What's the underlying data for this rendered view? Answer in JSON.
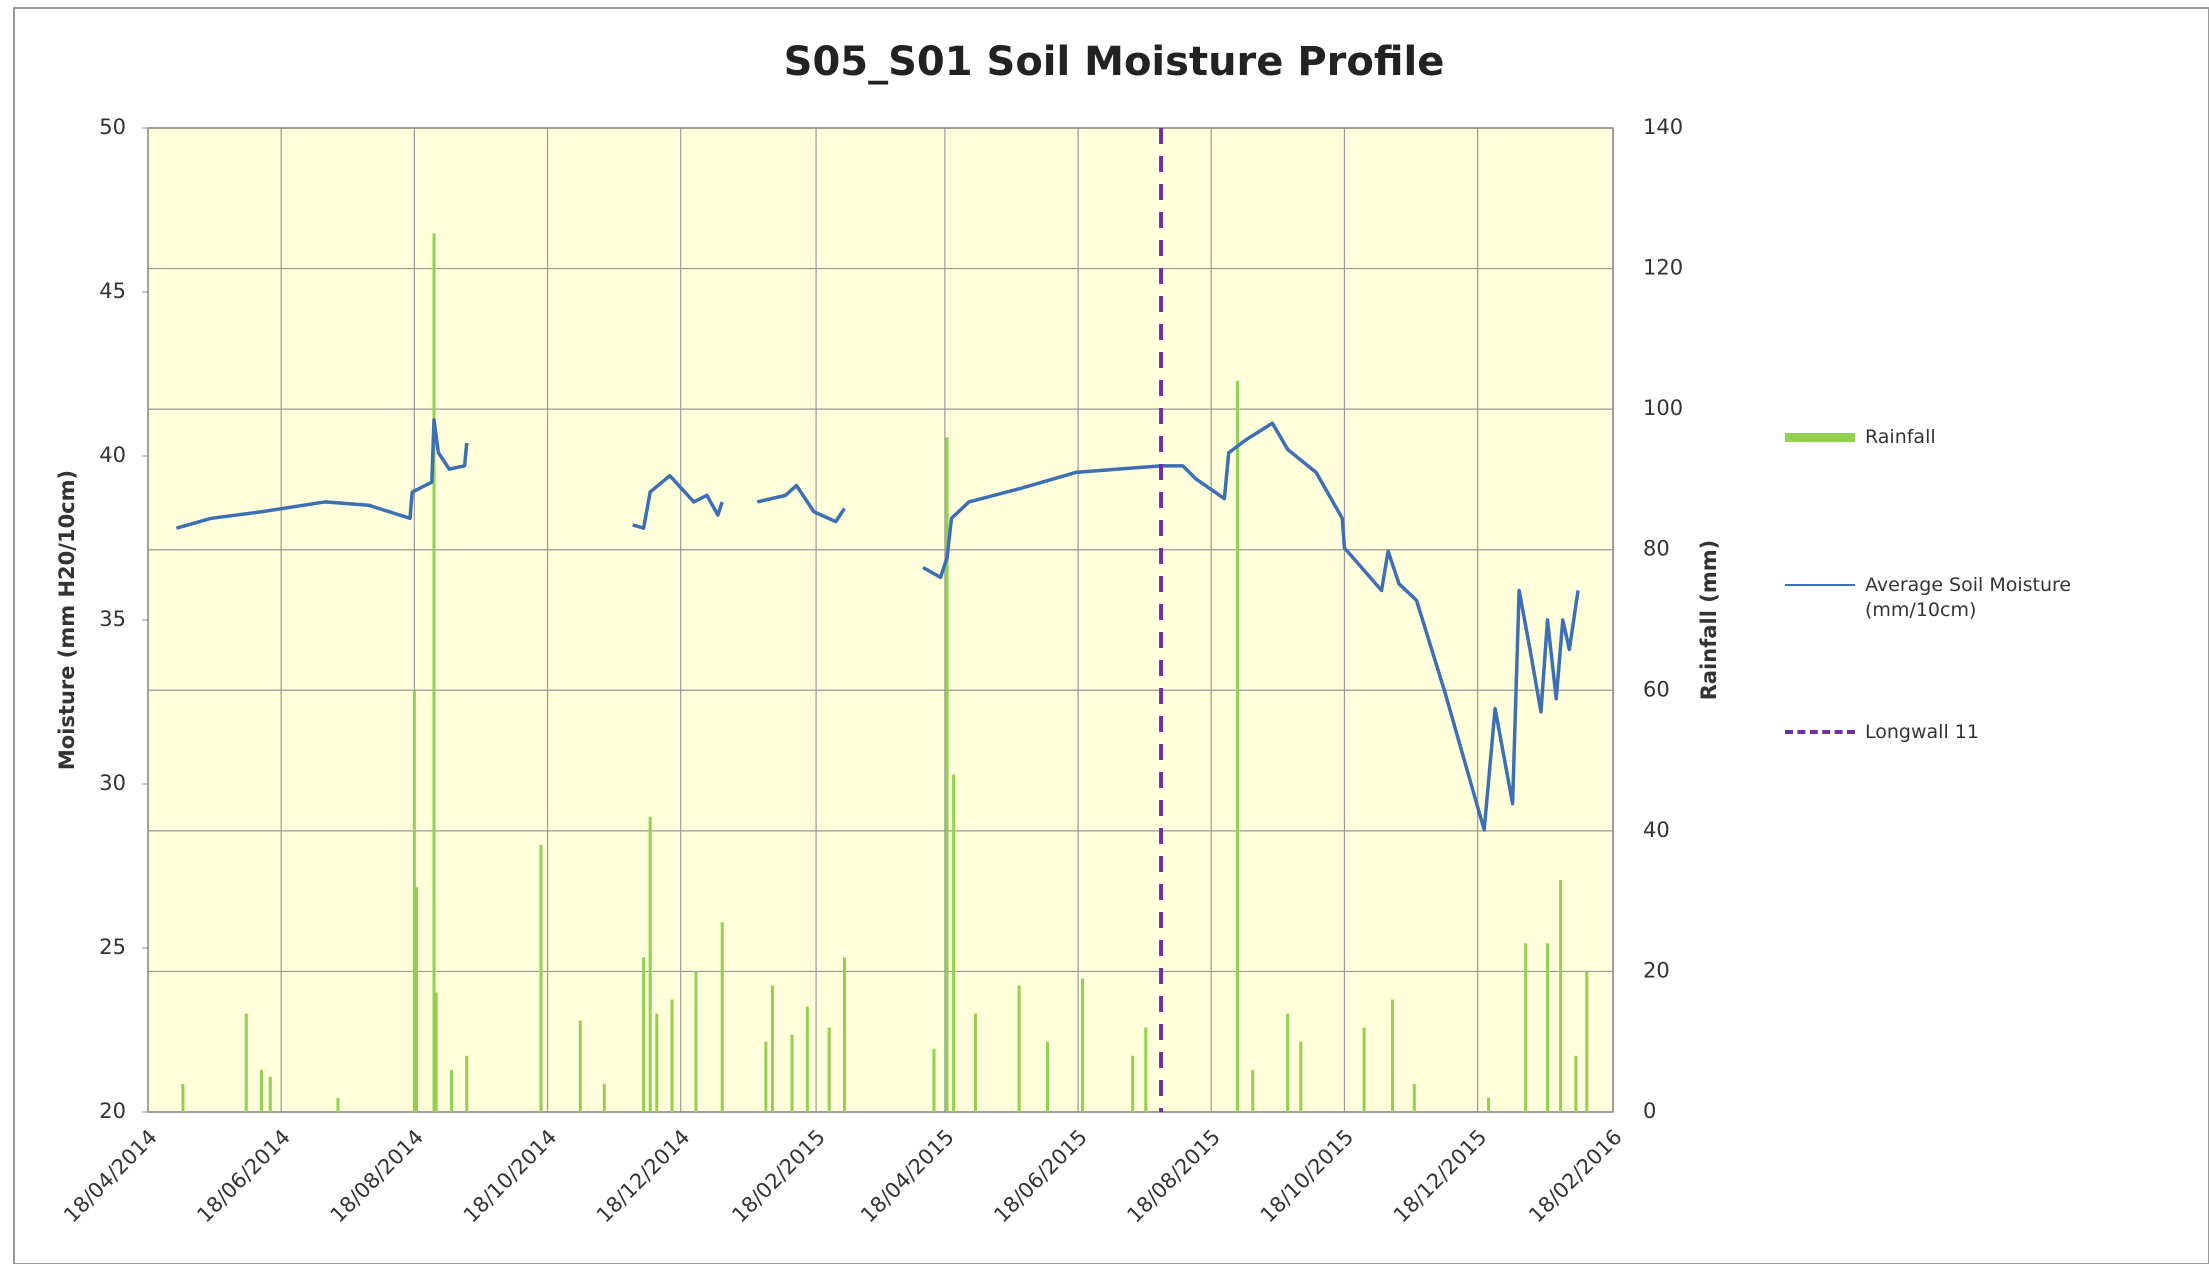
{
  "chart_data": {
    "type": "combo",
    "title": "S05_S01 Soil Moisture Profile",
    "y_label": "Moisture (mm H20/10cm)",
    "y2_label": "Rainfall (mm)",
    "xlim": [
      "18/04/2014",
      "18/02/2016"
    ],
    "xticks": [
      "18/04/2014",
      "18/06/2014",
      "18/08/2014",
      "18/10/2014",
      "18/12/2014",
      "18/02/2015",
      "18/04/2015",
      "18/06/2015",
      "18/08/2015",
      "18/10/2015",
      "18/12/2015",
      "18/02/2016"
    ],
    "ylim": [
      20,
      50
    ],
    "yticks": [
      20,
      25,
      30,
      35,
      40,
      45,
      50
    ],
    "y2lim": [
      0,
      140
    ],
    "y2ticks": [
      0,
      20,
      40,
      60,
      80,
      100,
      120,
      140
    ],
    "grid": true,
    "legend": "right",
    "series": [
      {
        "name": "Rainfall",
        "type": "bar",
        "axis": "y2",
        "color": "#92d050",
        "x": [
          "04/05/2014",
          "02/06/2014",
          "09/06/2014",
          "13/06/2014",
          "14/07/2014",
          "18/08/2014",
          "19/08/2014",
          "27/08/2014",
          "28/08/2014",
          "04/09/2014",
          "11/09/2014",
          "15/10/2014",
          "02/11/2014",
          "13/11/2014",
          "01/12/2014",
          "04/12/2014",
          "07/12/2014",
          "14/12/2014",
          "25/12/2014",
          "06/01/2015",
          "26/01/2015",
          "29/01/2015",
          "07/02/2015",
          "14/02/2015",
          "24/02/2015",
          "03/03/2015",
          "13/04/2015",
          "19/04/2015",
          "22/04/2015",
          "02/05/2015",
          "22/05/2015",
          "04/06/2015",
          "20/06/2015",
          "13/07/2015",
          "19/07/2015",
          "30/08/2015",
          "06/09/2015",
          "22/09/2015",
          "28/09/2015",
          "27/10/2015",
          "09/11/2015",
          "19/11/2015",
          "23/12/2015",
          "09/01/2016",
          "19/01/2016",
          "25/01/2016",
          "01/02/2016",
          "06/02/2016"
        ],
        "values": [
          4,
          14,
          6,
          5,
          2,
          60,
          32,
          125,
          17,
          6,
          8,
          38,
          13,
          4,
          22,
          42,
          14,
          16,
          20,
          27,
          10,
          18,
          11,
          15,
          12,
          22,
          9,
          96,
          48,
          14,
          18,
          10,
          19,
          8,
          12,
          104,
          6,
          14,
          10,
          12,
          16,
          4,
          2,
          24,
          24,
          33,
          8,
          20
        ]
      },
      {
        "name": "Average Soil Moisture (mm/10cm)",
        "type": "line",
        "axis": "y",
        "color": "#3d6fb4",
        "x": [
          "01/05/2014",
          "17/05/2014",
          "09/06/2014",
          "08/07/2014",
          "28/07/2014",
          "16/08/2014",
          "17/08/2014",
          "26/08/2014",
          "27/08/2014",
          "29/08/2014",
          "03/09/2014",
          "10/09/2014",
          "11/09/2014",
          "01/10/2014",
          "26/11/2014",
          "01/12/2014",
          "04/12/2014",
          "13/12/2014",
          "24/12/2014",
          "30/12/2014",
          "04/01/2015",
          "06/01/2015",
          "12/01/2015",
          "22/01/2015",
          "04/02/2015",
          "09/02/2015",
          "17/02/2015",
          "27/02/2015",
          "03/03/2015",
          "20/03/2015",
          "08/04/2015",
          "16/04/2015",
          "19/04/2015",
          "21/04/2015",
          "29/04/2015",
          "22/05/2015",
          "17/06/2015",
          "26/07/2015",
          "05/08/2015",
          "11/08/2015",
          "24/08/2015",
          "26/08/2015",
          "03/09/2015",
          "15/09/2015",
          "22/09/2015",
          "05/10/2015",
          "17/10/2015",
          "18/10/2015",
          "04/11/2015",
          "07/11/2015",
          "12/11/2015",
          "20/11/2015",
          "03/12/2015",
          "21/12/2015",
          "26/12/2015",
          "03/01/2016",
          "06/01/2016",
          "11/01/2016",
          "16/01/2016",
          "19/01/2016",
          "23/01/2016",
          "26/01/2016",
          "29/01/2016",
          "02/02/2016"
        ],
        "values": [
          37.8,
          38.1,
          38.3,
          38.6,
          38.5,
          38.1,
          38.9,
          39.2,
          41.1,
          40.1,
          39.6,
          39.7,
          40.4,
          null,
          37.9,
          37.8,
          38.9,
          39.4,
          38.6,
          38.8,
          38.2,
          38.6,
          null,
          38.6,
          38.8,
          39.1,
          38.3,
          38.0,
          38.4,
          null,
          36.6,
          36.3,
          36.9,
          38.1,
          38.6,
          39.0,
          39.5,
          39.7,
          39.7,
          39.3,
          38.7,
          40.1,
          40.5,
          41.0,
          40.2,
          39.5,
          38.1,
          37.2,
          35.9,
          37.1,
          36.1,
          35.6,
          32.8,
          28.6,
          32.3,
          29.4,
          35.9,
          34.1,
          32.2,
          35.0,
          32.6,
          35.0,
          34.1,
          35.9
        ]
      },
      {
        "name": "Longwall 11",
        "type": "vline",
        "color": "#7030a0",
        "x": [
          "26/07/2015"
        ]
      }
    ]
  }
}
